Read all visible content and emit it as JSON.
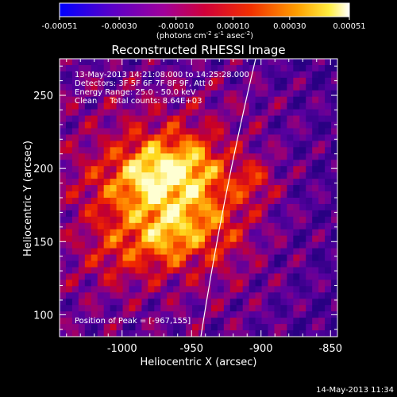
{
  "colorbar": {
    "tick_labels": [
      "-0.00051",
      "-0.00030",
      "-0.00010",
      "0.00010",
      "0.00030",
      "0.00051"
    ],
    "range": [
      -0.00051,
      0.00051
    ],
    "units_prefix": "(photons cm",
    "units_exp1": "-2",
    "units_mid": " s",
    "units_exp2": "-1",
    "units_mid2": " asec",
    "units_exp3": "-2",
    "units_suffix": ")"
  },
  "chart_data": {
    "type": "heatmap",
    "title": "Reconstructed RHESSI Image",
    "xlabel": "Heliocentric X (arcsec)",
    "ylabel": "Heliocentric Y (arcsec)",
    "xlim": [
      -1045,
      -845
    ],
    "ylim": [
      85,
      275
    ],
    "x_ticks": [
      -1000,
      -950,
      -900,
      -850
    ],
    "x_tick_labels": [
      "-1000",
      "-950",
      "-900",
      "-850"
    ],
    "y_ticks": [
      100,
      150,
      200,
      250
    ],
    "y_tick_labels": [
      "100",
      "150",
      "200",
      "250"
    ],
    "annotations": [
      "13-May-2013 14:21:08.000 to 14:25:28.000",
      "Detectors: 3F 5F 6F 7F 8F 9F, Att 0",
      "Energy Range: 25.0 - 50.0 keV",
      "Clean     Total counts: 8.64E+03"
    ],
    "peak_label": "Position of Peak = [-967,155]",
    "peak_position": [
      -967,
      155
    ],
    "colormap": "rainbow-hot (blue-purple-red-orange-yellow-white)",
    "limb_visible": true
  },
  "footer": {
    "timestamp": "14-May-2013 11:34"
  }
}
